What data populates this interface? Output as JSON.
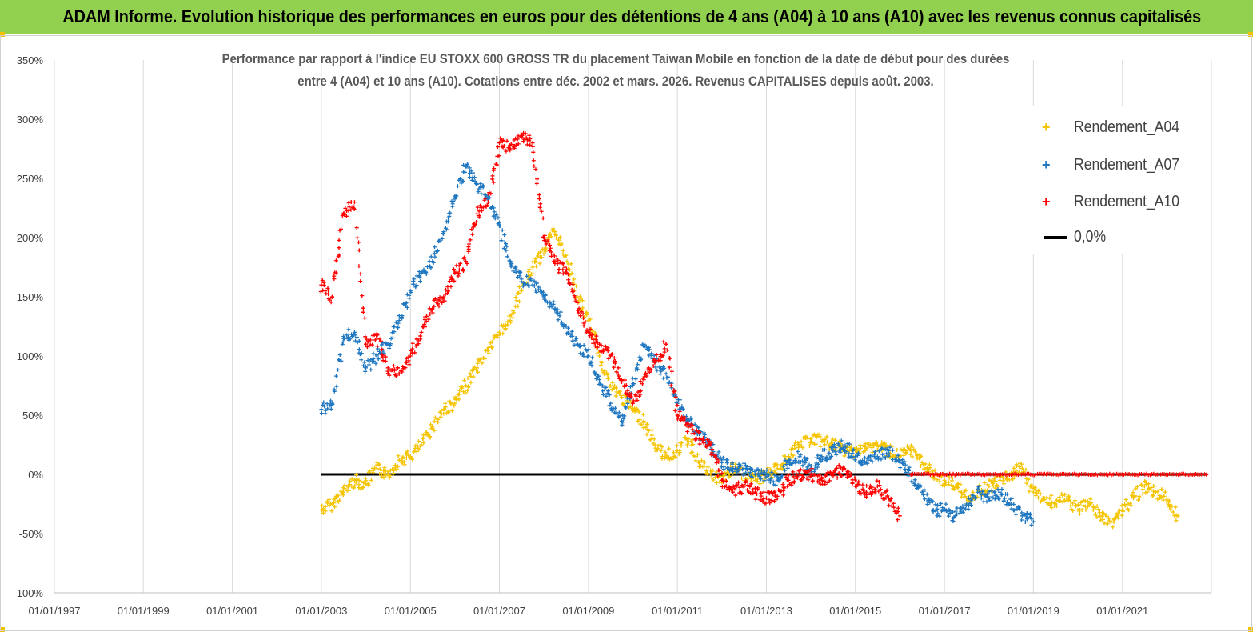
{
  "header": {
    "title": "ADAM Informe. Evolution historique des performances en euros pour des détentions de 4 ans (A04) à 10 ans (A10) avec les revenus connus capitalisés"
  },
  "colors": {
    "banner": "#92d050",
    "a04": "#f5c400",
    "a07": "#1f77c0",
    "a10": "#ff0000",
    "zero": "#000000"
  },
  "chart_data": {
    "type": "scatter",
    "title_line1": "Performance par rapport à l'indice EU STOXX 600 GROSS TR  du placement Taiwan Mobile  en fonction de la date de début pour des durées",
    "title_line2": "entre 4 (A04) et 10 ans (A10). Cotations entre déc. 2002 et mars. 2026. Revenus CAPITALISES depuis août. 2003.",
    "x_tick_labels": [
      "01/01/1997",
      "01/01/1999",
      "01/01/2001",
      "01/01/2003",
      "01/01/2005",
      "01/01/2007",
      "01/01/2009",
      "01/01/2011",
      "01/01/2013",
      "01/01/2015",
      "01/01/2017",
      "01/01/2019",
      "01/01/2021"
    ],
    "y_tick_labels": [
      "350%",
      "300%",
      "250%",
      "200%",
      "150%",
      "100%",
      "50%",
      "0%",
      "-50%",
      "- 100%"
    ],
    "y_ticks": [
      350,
      300,
      250,
      200,
      150,
      100,
      50,
      0,
      -50,
      -100
    ],
    "xlim": [
      "1997-01-01",
      "2023-01-01"
    ],
    "ylim": [
      -100,
      350
    ],
    "grid": "vertical",
    "legend_position": "top-right",
    "series": [
      {
        "name": "Rendement_A04",
        "color": "#f5c400",
        "x": [
          "2003-01-01",
          "2003-04-01",
          "2003-07-01",
          "2003-10-01",
          "2004-01-01",
          "2004-04-01",
          "2004-07-01",
          "2004-10-01",
          "2005-01-01",
          "2005-04-01",
          "2005-07-01",
          "2005-10-01",
          "2006-01-01",
          "2006-04-01",
          "2006-07-01",
          "2006-10-01",
          "2007-01-01",
          "2007-04-01",
          "2007-07-01",
          "2007-10-01",
          "2008-01-01",
          "2008-04-01",
          "2008-07-01",
          "2008-10-01",
          "2009-01-01",
          "2009-04-01",
          "2009-07-01",
          "2009-10-01",
          "2010-01-01",
          "2010-04-01",
          "2010-07-01",
          "2010-10-01",
          "2011-01-01",
          "2011-04-01",
          "2011-07-01",
          "2011-10-01",
          "2012-01-01",
          "2012-04-01",
          "2012-07-01",
          "2012-10-01",
          "2013-01-01",
          "2013-04-01",
          "2013-07-01",
          "2013-10-01",
          "2014-01-01",
          "2014-04-01",
          "2014-07-01",
          "2014-10-01",
          "2015-01-01",
          "2015-04-01",
          "2015-07-01",
          "2015-10-01",
          "2016-01-01",
          "2016-04-01",
          "2016-07-01",
          "2016-10-01",
          "2017-01-01",
          "2017-04-01",
          "2017-07-01",
          "2017-10-01",
          "2018-01-01",
          "2018-04-01",
          "2018-07-01",
          "2018-10-01",
          "2019-01-01",
          "2019-04-01",
          "2019-07-01",
          "2019-10-01",
          "2020-01-01",
          "2020-04-01",
          "2020-07-01",
          "2020-10-01",
          "2021-01-01",
          "2021-04-01",
          "2021-07-01",
          "2021-10-01",
          "2022-01-01",
          "2022-04-01"
        ],
        "values": [
          -30,
          -25,
          -15,
          -5,
          -8,
          5,
          0,
          12,
          15,
          25,
          40,
          55,
          60,
          75,
          90,
          105,
          120,
          130,
          155,
          175,
          190,
          205,
          185,
          150,
          130,
          100,
          75,
          65,
          55,
          45,
          25,
          15,
          20,
          30,
          10,
          0,
          -5,
          5,
          0,
          -5,
          0,
          5,
          15,
          25,
          30,
          28,
          25,
          20,
          20,
          22,
          25,
          20,
          15,
          20,
          10,
          0,
          -5,
          -10,
          -20,
          -15,
          -10,
          -5,
          0,
          5,
          -15,
          -20,
          -25,
          -20,
          -30,
          -25,
          -35,
          -40,
          -30,
          -20,
          -10,
          -15,
          -20,
          -35
        ]
      },
      {
        "name": "Rendement_A07",
        "color": "#1f77c0",
        "x": [
          "2003-01-01",
          "2003-04-01",
          "2003-07-01",
          "2003-10-01",
          "2004-01-01",
          "2004-04-01",
          "2004-07-01",
          "2004-10-01",
          "2005-01-01",
          "2005-04-01",
          "2005-07-01",
          "2005-10-01",
          "2006-01-01",
          "2006-04-01",
          "2006-07-01",
          "2006-10-01",
          "2007-01-01",
          "2007-04-01",
          "2007-07-01",
          "2007-10-01",
          "2008-01-01",
          "2008-04-01",
          "2008-07-01",
          "2008-10-01",
          "2009-01-01",
          "2009-04-01",
          "2009-07-01",
          "2009-10-01",
          "2010-01-01",
          "2010-04-01",
          "2010-07-01",
          "2010-10-01",
          "2011-01-01",
          "2011-04-01",
          "2011-07-01",
          "2011-10-01",
          "2012-01-01",
          "2012-04-01",
          "2012-07-01",
          "2012-10-01",
          "2013-01-01",
          "2013-04-01",
          "2013-07-01",
          "2013-10-01",
          "2014-01-01",
          "2014-04-01",
          "2014-07-01",
          "2014-10-01",
          "2015-01-01",
          "2015-04-01",
          "2015-07-01",
          "2015-10-01",
          "2016-01-01",
          "2016-04-01",
          "2016-07-01",
          "2016-10-01",
          "2017-01-01",
          "2017-04-01",
          "2017-07-01",
          "2017-10-01",
          "2018-01-01",
          "2018-04-01",
          "2018-07-01",
          "2018-10-01",
          "2019-01-01"
        ],
        "values": [
          55,
          60,
          115,
          120,
          90,
          100,
          110,
          130,
          155,
          170,
          180,
          205,
          235,
          260,
          245,
          235,
          210,
          180,
          165,
          160,
          150,
          140,
          125,
          110,
          100,
          80,
          60,
          45,
          75,
          110,
          95,
          85,
          60,
          45,
          35,
          25,
          10,
          5,
          5,
          0,
          0,
          -5,
          10,
          15,
          5,
          15,
          20,
          25,
          15,
          10,
          15,
          20,
          10,
          0,
          -15,
          -30,
          -30,
          -35,
          -25,
          -15,
          -20,
          -15,
          -25,
          -35,
          -40
        ]
      },
      {
        "name": "Rendement_A10",
        "color": "#ff0000",
        "x": [
          "2003-01-01",
          "2003-04-01",
          "2003-07-01",
          "2003-10-01",
          "2004-01-01",
          "2004-04-01",
          "2004-07-01",
          "2004-10-01",
          "2005-01-01",
          "2005-04-01",
          "2005-07-01",
          "2005-10-01",
          "2006-01-01",
          "2006-04-01",
          "2006-07-01",
          "2006-10-01",
          "2007-01-01",
          "2007-04-01",
          "2007-07-01",
          "2007-10-01",
          "2008-01-01",
          "2008-04-01",
          "2008-07-01",
          "2008-10-01",
          "2009-01-01",
          "2009-04-01",
          "2009-07-01",
          "2009-10-01",
          "2010-01-01",
          "2010-04-01",
          "2010-07-01",
          "2010-10-01",
          "2011-01-01",
          "2011-04-01",
          "2011-07-01",
          "2011-10-01",
          "2012-01-01",
          "2012-04-01",
          "2012-07-01",
          "2012-10-01",
          "2013-01-01",
          "2013-04-01",
          "2013-07-01",
          "2013-10-01",
          "2014-01-01",
          "2014-04-01",
          "2014-07-01",
          "2014-10-01",
          "2015-01-01",
          "2015-04-01",
          "2015-07-01",
          "2015-10-01",
          "2016-01-01"
        ],
        "values": [
          160,
          150,
          220,
          230,
          110,
          115,
          90,
          85,
          100,
          120,
          140,
          150,
          170,
          180,
          220,
          230,
          280,
          275,
          285,
          280,
          200,
          180,
          170,
          145,
          120,
          110,
          100,
          80,
          60,
          80,
          95,
          110,
          50,
          40,
          30,
          25,
          -5,
          -15,
          -10,
          -15,
          -20,
          -20,
          -5,
          0,
          0,
          -5,
          0,
          5,
          -10,
          -15,
          -10,
          -20,
          -35
        ]
      },
      {
        "name": "0,0%",
        "color": "#000000",
        "x": [
          "2003-01-01",
          "2022-12-01"
        ],
        "values": [
          0,
          0
        ]
      }
    ]
  }
}
